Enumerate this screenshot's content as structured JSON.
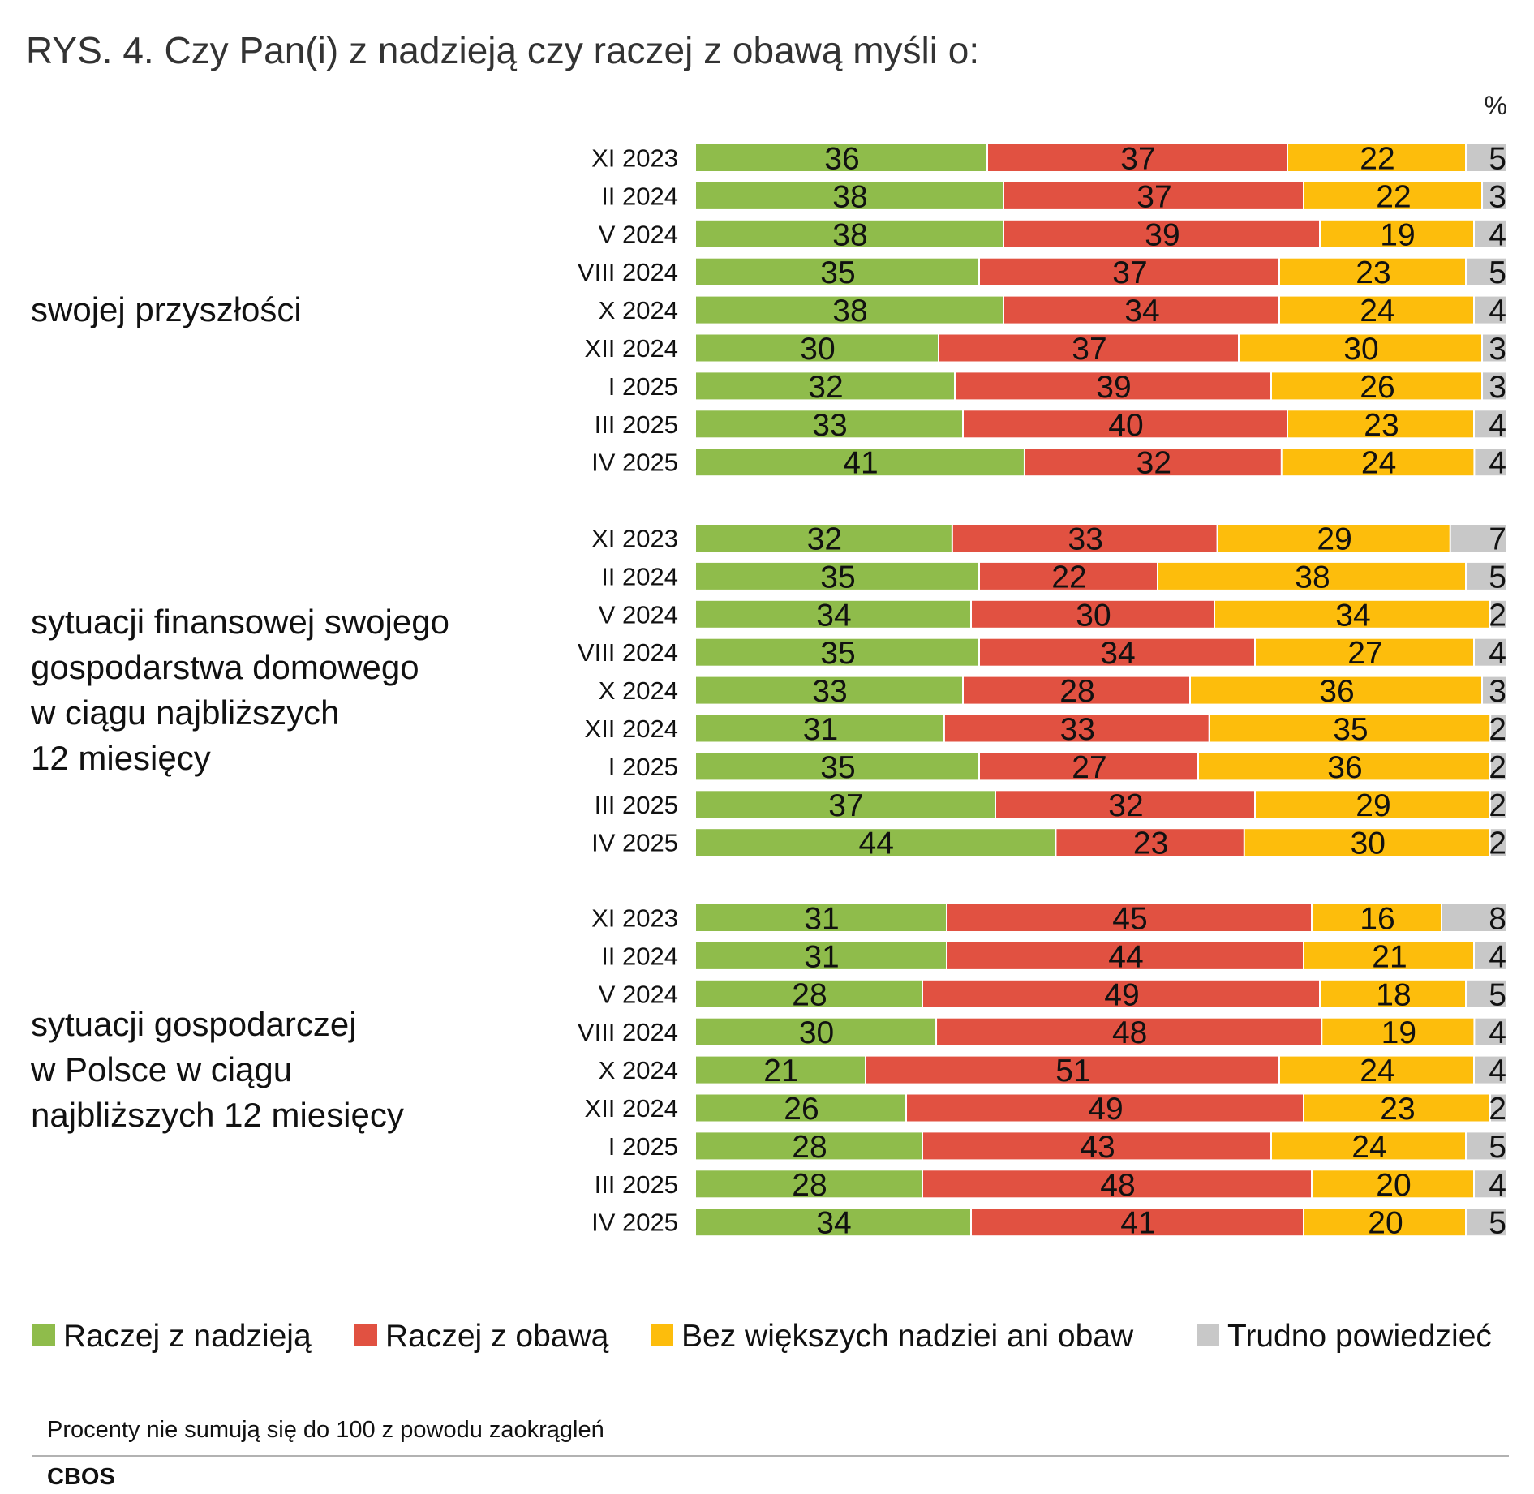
{
  "title": "RYS. 4. Czy Pan(i) z nadzieją czy raczej z obawą myśli o:",
  "unit": "%",
  "note": "Procenty nie sumują się do 100 z powodu zaokrągleń",
  "source": "CBOS",
  "colors": {
    "Raczej z nadzieją": "#8fbc4b",
    "Raczej z obawą": "#e15141",
    "Bez większych nadziei ani obaw": "#fdbd0c",
    "Trudno powiedzieć": "#c8c8c8"
  },
  "chart_data": {
    "type": "bar",
    "orientation": "horizontal",
    "stacked": true,
    "xlim": [
      0,
      100
    ],
    "series_names": [
      "Raczej z nadzieją",
      "Raczej z obawą",
      "Bez większych nadziei ani obaw",
      "Trudno powiedzieć"
    ],
    "legend_position": "bottom",
    "grid": false,
    "groups": [
      {
        "label": [
          "swojej przyszłości"
        ],
        "categories": [
          "XI 2023",
          "II 2024",
          "V 2024",
          "VIII 2024",
          "X 2024",
          "XII 2024",
          "I 2025",
          "III 2025",
          "IV 2025"
        ],
        "values": [
          [
            36,
            37,
            22,
            5
          ],
          [
            38,
            37,
            22,
            3
          ],
          [
            38,
            39,
            19,
            4
          ],
          [
            35,
            37,
            23,
            5
          ],
          [
            38,
            34,
            24,
            4
          ],
          [
            30,
            37,
            30,
            3
          ],
          [
            32,
            39,
            26,
            3
          ],
          [
            33,
            40,
            23,
            4
          ],
          [
            41,
            32,
            24,
            4
          ]
        ]
      },
      {
        "label": [
          "sytuacji finansowej swojego",
          "gospodarstwa domowego",
          "w ciągu najbliższych",
          "12 miesięcy"
        ],
        "categories": [
          "XI 2023",
          "II 2024",
          "V 2024",
          "VIII 2024",
          "X 2024",
          "XII 2024",
          "I 2025",
          "III 2025",
          "IV 2025"
        ],
        "values": [
          [
            32,
            33,
            29,
            7
          ],
          [
            35,
            22,
            38,
            5
          ],
          [
            34,
            30,
            34,
            2
          ],
          [
            35,
            34,
            27,
            4
          ],
          [
            33,
            28,
            36,
            3
          ],
          [
            31,
            33,
            35,
            2
          ],
          [
            35,
            27,
            36,
            2
          ],
          [
            37,
            32,
            29,
            2
          ],
          [
            44,
            23,
            30,
            2
          ]
        ]
      },
      {
        "label": [
          "sytuacji gospodarczej",
          "w Polsce w ciągu",
          "najbliższych 12 miesięcy"
        ],
        "categories": [
          "XI 2023",
          "II 2024",
          "V 2024",
          "VIII 2024",
          "X 2024",
          "XII 2024",
          "I 2025",
          "III 2025",
          "IV 2025"
        ],
        "values": [
          [
            31,
            45,
            16,
            8
          ],
          [
            31,
            44,
            21,
            4
          ],
          [
            28,
            49,
            18,
            5
          ],
          [
            30,
            48,
            19,
            4
          ],
          [
            21,
            51,
            24,
            4
          ],
          [
            26,
            49,
            23,
            2
          ],
          [
            28,
            43,
            24,
            5
          ],
          [
            28,
            48,
            20,
            4
          ],
          [
            34,
            41,
            20,
            5
          ]
        ]
      }
    ]
  }
}
